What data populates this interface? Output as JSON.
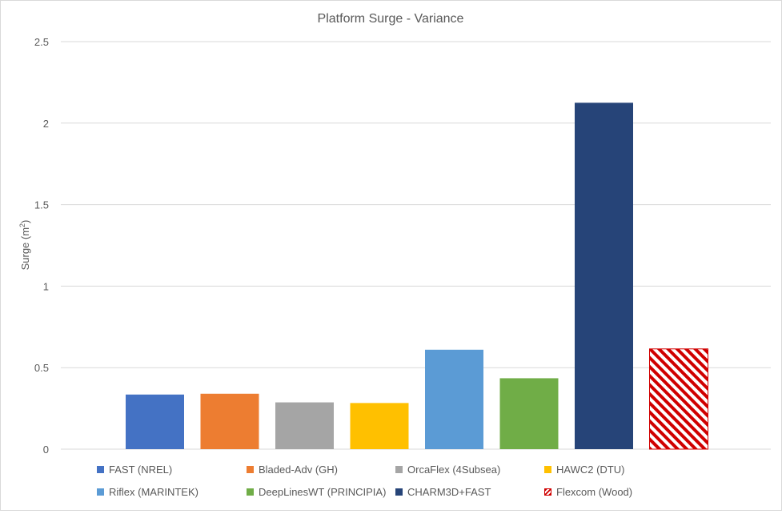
{
  "chart_data": {
    "type": "bar",
    "title": "Platform Surge - Variance",
    "ylabel_prefix": "Surge (m",
    "ylabel_sup": "2",
    "ylabel_suffix": ")",
    "xlabel": "",
    "ylim": [
      0,
      2.5
    ],
    "yticks": [
      0,
      0.5,
      1,
      1.5,
      2,
      2.5
    ],
    "ytick_labels": [
      "0",
      "0.5",
      "1",
      "1.5",
      "2",
      "2.5"
    ],
    "grid": true,
    "legend_position": "bottom",
    "series": [
      {
        "name": "FAST (NREL)",
        "value": 0.335,
        "color": "#4472c4",
        "pattern": "solid"
      },
      {
        "name": "Bladed-Adv (GH)",
        "value": 0.34,
        "color": "#ed7d31",
        "pattern": "solid"
      },
      {
        "name": "OrcaFlex (4Subsea)",
        "value": 0.287,
        "color": "#a5a5a5",
        "pattern": "solid"
      },
      {
        "name": "HAWC2 (DTU)",
        "value": 0.283,
        "color": "#ffc000",
        "pattern": "solid"
      },
      {
        "name": "Riflex (MARINTEK)",
        "value": 0.61,
        "color": "#5b9bd5",
        "pattern": "solid"
      },
      {
        "name": "DeepLinesWT (PRINCIPIA)",
        "value": 0.435,
        "color": "#70ad47",
        "pattern": "solid"
      },
      {
        "name": "CHARM3D+FAST",
        "value": 2.125,
        "color": "#264478",
        "pattern": "solid"
      },
      {
        "name": "Flexcom (Wood)",
        "value": 0.615,
        "color": "#c00000",
        "pattern": "hatch"
      }
    ]
  }
}
